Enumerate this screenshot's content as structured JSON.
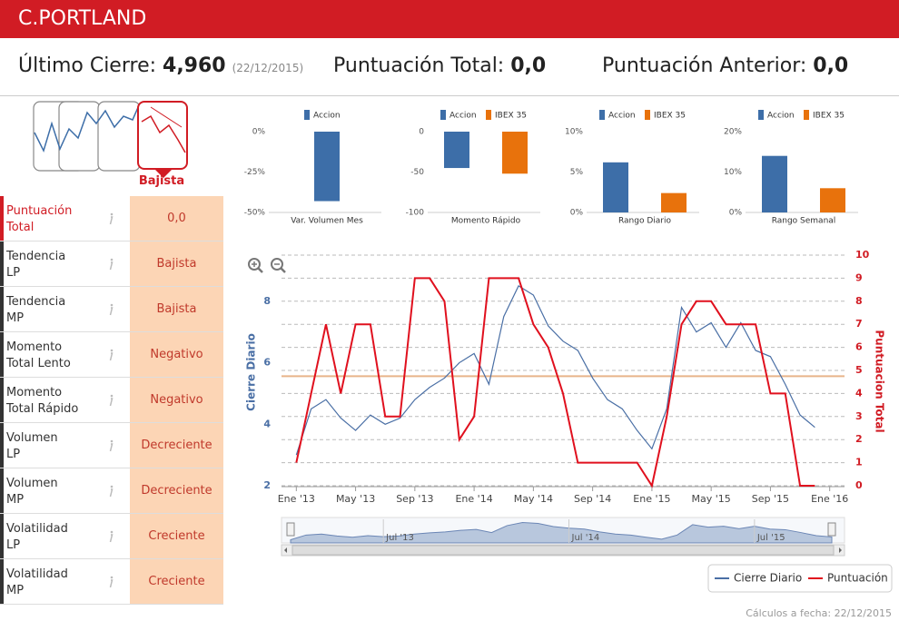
{
  "header": {
    "title": "C.PORTLAND"
  },
  "summary": {
    "last_close": {
      "label": "Último Cierre:",
      "value": "4,960",
      "date": "(22/12/2015)"
    },
    "total_score": {
      "label": "Puntuación Total:",
      "value": "0,0"
    },
    "previous_score": {
      "label": "Puntuación Anterior:",
      "value": "0,0"
    }
  },
  "trend": {
    "label": "Bajista"
  },
  "indicators": [
    {
      "name": [
        "Puntuación",
        "Total"
      ],
      "value": "0,0"
    },
    {
      "name": [
        "Tendencia",
        "LP"
      ],
      "value": "Bajista"
    },
    {
      "name": [
        "Tendencia",
        "MP"
      ],
      "value": "Bajista"
    },
    {
      "name": [
        "Momento",
        "Total Lento"
      ],
      "value": "Negativo"
    },
    {
      "name": [
        "Momento",
        "Total Rápido"
      ],
      "value": "Negativo"
    },
    {
      "name": [
        "Volumen",
        "LP"
      ],
      "value": "Decreciente"
    },
    {
      "name": [
        "Volumen",
        "MP"
      ],
      "value": "Decreciente"
    },
    {
      "name": [
        "Volatilidad",
        "LP"
      ],
      "value": "Creciente"
    },
    {
      "name": [
        "Volatilidad",
        "MP"
      ],
      "value": "Creciente"
    }
  ],
  "footer": "Cálculos a fecha: 22/12/2015",
  "chart_data": [
    {
      "type": "bar",
      "categories": [
        "Var. Volumen Mes"
      ],
      "series": [
        {
          "name": "Accion",
          "color": "#3d6ea8",
          "values": [
            -43
          ]
        }
      ],
      "ylim": [
        -50,
        0
      ],
      "yticks": [
        {
          "value": 0,
          "label": "0%"
        },
        {
          "value": -25,
          "label": "-25%"
        },
        {
          "value": -50,
          "label": "-50%"
        }
      ]
    },
    {
      "type": "bar",
      "categories": [
        "Momento Rápido"
      ],
      "series": [
        {
          "name": "Accion",
          "color": "#3d6ea8",
          "values": [
            -45
          ]
        },
        {
          "name": "IBEX 35",
          "color": "#e8720c",
          "values": [
            -52
          ]
        }
      ],
      "ylim": [
        -100,
        0
      ],
      "yticks": [
        0,
        -50,
        -100
      ]
    },
    {
      "type": "bar",
      "categories": [
        "Rango Diario"
      ],
      "series": [
        {
          "name": "Accion",
          "color": "#3d6ea8",
          "values": [
            6.2
          ]
        },
        {
          "name": "IBEX 35",
          "color": "#e8720c",
          "values": [
            2.4
          ]
        }
      ],
      "ylim": [
        0,
        10
      ],
      "yticks": [
        {
          "value": 0,
          "label": "0%"
        },
        {
          "value": 5,
          "label": "5%"
        },
        {
          "value": 10,
          "label": "10%"
        }
      ]
    },
    {
      "type": "bar",
      "categories": [
        "Rango Semanal"
      ],
      "series": [
        {
          "name": "Accion",
          "color": "#3d6ea8",
          "values": [
            14
          ]
        },
        {
          "name": "IBEX 35",
          "color": "#e8720c",
          "values": [
            6
          ]
        }
      ],
      "ylim": [
        0,
        20
      ],
      "yticks": [
        {
          "value": 0,
          "label": "0%"
        },
        {
          "value": 10,
          "label": "10%"
        },
        {
          "value": 20,
          "label": "20%"
        }
      ]
    },
    {
      "type": "line",
      "x": [
        "2013-01",
        "2013-02",
        "2013-03",
        "2013-04",
        "2013-05",
        "2013-06",
        "2013-07",
        "2013-08",
        "2013-09",
        "2013-10",
        "2013-11",
        "2013-12",
        "2014-01",
        "2014-02",
        "2014-03",
        "2014-04",
        "2014-05",
        "2014-06",
        "2014-07",
        "2014-08",
        "2014-09",
        "2014-10",
        "2014-11",
        "2014-12",
        "2015-01",
        "2015-02",
        "2015-03",
        "2015-04",
        "2015-05",
        "2015-06",
        "2015-07",
        "2015-08",
        "2015-09",
        "2015-10",
        "2015-11",
        "2015-12"
      ],
      "xlim": [
        "2012-12",
        "2016-02"
      ],
      "xticks": [
        {
          "value": "2013-01",
          "label": "Ene '13"
        },
        {
          "value": "2013-05",
          "label": "May '13"
        },
        {
          "value": "2013-09",
          "label": "Sep '13"
        },
        {
          "value": "2014-01",
          "label": "Ene '14"
        },
        {
          "value": "2014-05",
          "label": "May '14"
        },
        {
          "value": "2014-09",
          "label": "Sep '14"
        },
        {
          "value": "2015-01",
          "label": "Ene '15"
        },
        {
          "value": "2015-05",
          "label": "May '15"
        },
        {
          "value": "2015-09",
          "label": "Sep '15"
        },
        {
          "value": "2016-01",
          "label": "Ene '16"
        }
      ],
      "ylim": [
        2,
        9.5
      ],
      "yticks": [
        2,
        4,
        6,
        8
      ],
      "y2lim": [
        0,
        10
      ],
      "y2ticks": [
        0,
        1,
        2,
        3,
        4,
        5,
        6,
        7,
        8,
        9,
        10
      ],
      "ylabel": "Cierre Diario",
      "y2label": "Puntuacion Total",
      "grid": true,
      "series": [
        {
          "name": "Cierre Diario",
          "color": "#4a6fa5",
          "values": [
            3.0,
            4.5,
            4.8,
            4.2,
            3.8,
            4.3,
            4.0,
            4.2,
            4.8,
            5.2,
            5.5,
            6.0,
            6.3,
            5.3,
            7.5,
            8.5,
            8.2,
            7.2,
            6.7,
            6.4,
            5.5,
            4.8,
            4.5,
            3.8,
            3.2,
            4.5,
            7.8,
            7.0,
            7.3,
            6.5,
            7.3,
            6.4,
            6.2,
            5.3,
            4.3,
            3.9
          ]
        },
        {
          "name": "Puntuación",
          "color": "#e0101e",
          "axis": "y2",
          "values": [
            1,
            4,
            7,
            4,
            7,
            7,
            3,
            3,
            9,
            9,
            8,
            2,
            3,
            9,
            9,
            9,
            7,
            6,
            4,
            1,
            1,
            1,
            1,
            1,
            0,
            3,
            7,
            8,
            8,
            7,
            7,
            7,
            4,
            4,
            0,
            0
          ]
        }
      ],
      "reference_line": {
        "value": 5.56,
        "color": "#e8b48a"
      },
      "navigator_ticks": [
        "Jul '13",
        "Jul '14",
        "Jul '15"
      ]
    }
  ]
}
